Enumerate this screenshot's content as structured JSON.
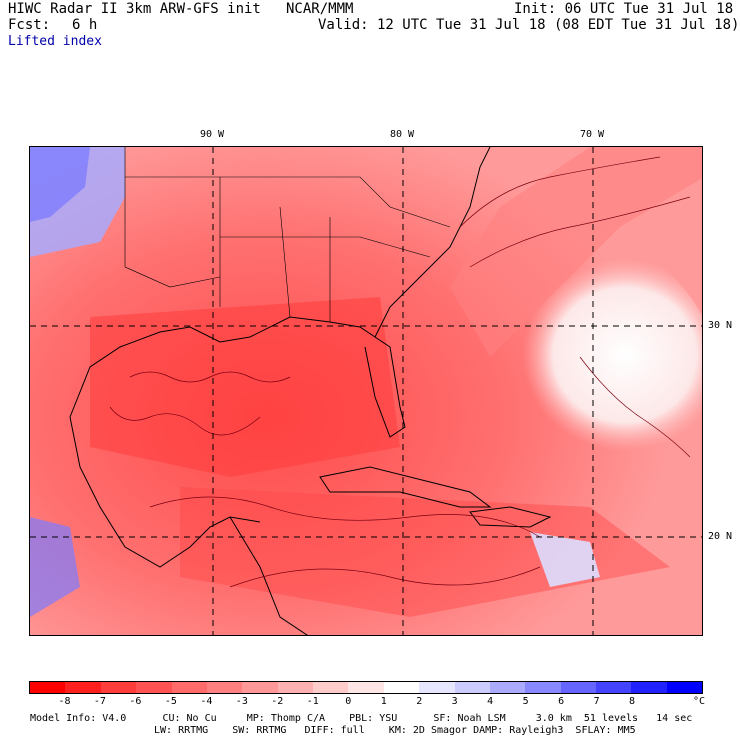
{
  "header": {
    "title": "HIWC Radar II 3km ARW-GFS init",
    "org": "NCAR/MMM",
    "init": "Init: 06 UTC Tue 31 Jul 18",
    "fcst_label": "Fcst:",
    "fcst_value": "6 h",
    "valid": "Valid: 12 UTC Tue 31 Jul 18 (08 EDT Tue 31 Jul 18)",
    "field": "Lifted index"
  },
  "map": {
    "lon_labels": [
      "90 W",
      "80 W",
      "70 W"
    ],
    "lat_labels": [
      "30 N",
      "20 N"
    ]
  },
  "legend": {
    "ticks": [
      "-8",
      "-7",
      "-6",
      "-5",
      "-4",
      "-3",
      "-2",
      "-1",
      "0",
      "1",
      "2",
      "3",
      "4",
      "5",
      "6",
      "7",
      "8"
    ],
    "unit": "°C",
    "colors": [
      "#ff0000",
      "#ff1f1f",
      "#ff3d3d",
      "#ff5252",
      "#ff6a6a",
      "#ff8080",
      "#ff9898",
      "#ffb0b0",
      "#ffcccc",
      "#ffe6e6",
      "#ffffff",
      "#e6e6ff",
      "#ccccff",
      "#aaaaff",
      "#8888ff",
      "#6666ff",
      "#4444ff",
      "#2222ff",
      "#0000ff"
    ]
  },
  "footer": {
    "line1": "Model Info: V4.0      CU: No Cu     MP: Thomp C/A    PBL: YSU      SF: Noah LSM     3.0 km  51 levels   14 sec",
    "line2": "LW: RRTMG    SW: RRTMG   DIFF: full    KM: 2D Smagor DAMP: Rayleigh3  SFLAY: MM5"
  }
}
